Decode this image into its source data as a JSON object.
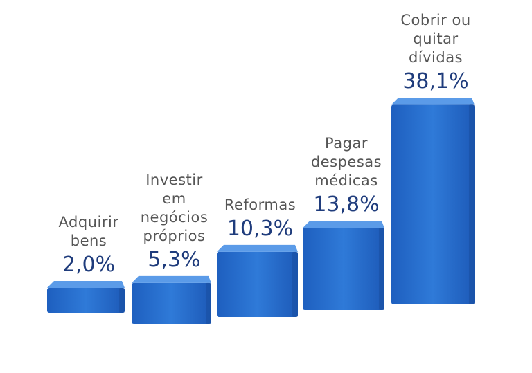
{
  "chart_data": {
    "type": "bar3d",
    "categories": [
      "Adquirir\nbens",
      "Investir\nem\nnegócios\npróprios",
      "Reformas",
      "Pagar\ndespesas\nmédicas",
      "Cobrir ou\nquitar dívidas"
    ],
    "values": [
      2.0,
      5.3,
      10.3,
      13.8,
      38.1
    ],
    "value_labels": [
      "2,0%",
      "5,3%",
      "10,3%",
      "13,8%",
      "38,1%"
    ],
    "color": "#2f74d0"
  }
}
